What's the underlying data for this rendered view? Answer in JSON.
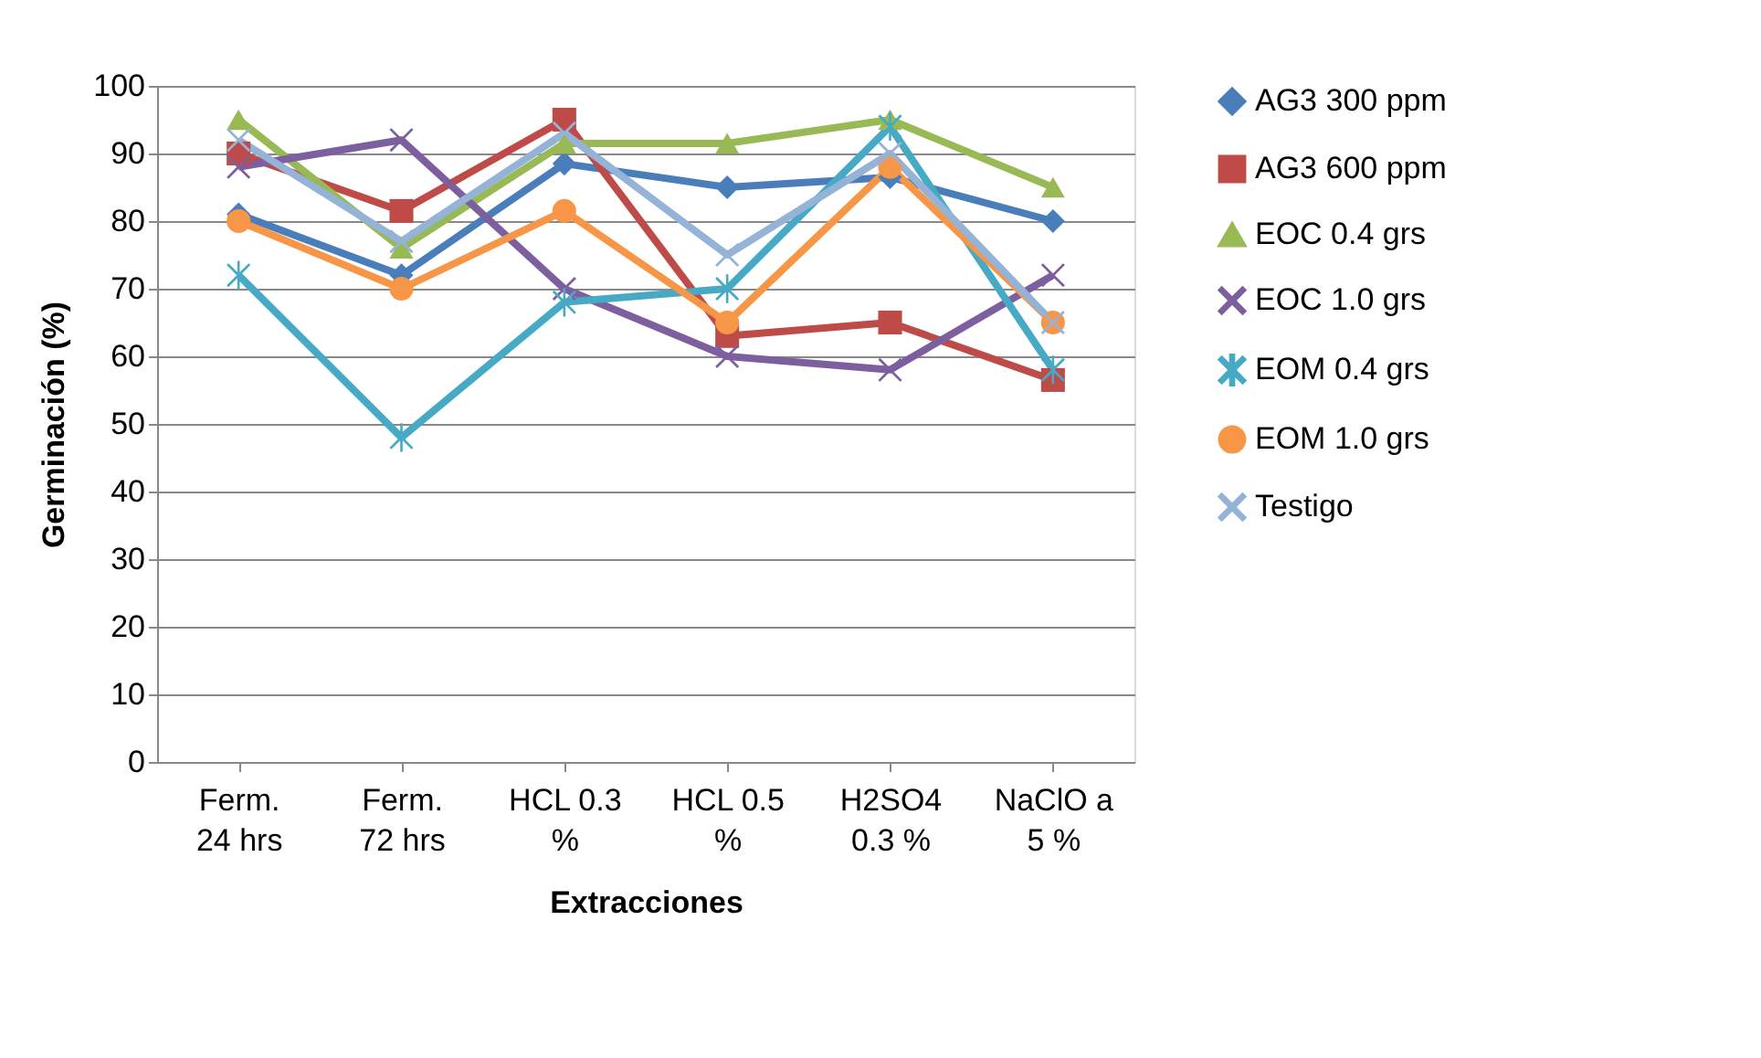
{
  "chart_data": {
    "type": "line",
    "xlabel": "Extracciones",
    "ylabel": "Germinación (%)",
    "categories": [
      "Ferm. 24 hrs",
      "Ferm. 72 hrs",
      "HCL 0.3 %",
      "HCL 0.5 %",
      "H2SO4 0.3 %",
      "NaClO a 5 %"
    ],
    "ylim": [
      0,
      100
    ],
    "yticks": [
      0,
      10,
      20,
      30,
      40,
      50,
      60,
      70,
      80,
      90,
      100
    ],
    "grid": "y",
    "legend": "right",
    "series": [
      {
        "name": "AG3   300 ppm",
        "color": "#4a7ebb",
        "marker": "diamond",
        "values": [
          81,
          72,
          88.5,
          85,
          86.5,
          80
        ]
      },
      {
        "name": "AG3   600 ppm",
        "color": "#be4b48",
        "marker": "square",
        "values": [
          90,
          81.5,
          95,
          63,
          65,
          56.5
        ]
      },
      {
        "name": "EOC 0.4 grs",
        "color": "#98b954",
        "marker": "triangle",
        "values": [
          95,
          76,
          91.5,
          91.5,
          95,
          85
        ]
      },
      {
        "name": "EOC 1.0 grs",
        "color": "#7d5fa0",
        "marker": "cross",
        "values": [
          88,
          92,
          70,
          60,
          58,
          72
        ]
      },
      {
        "name": "EOM 0.4 grs",
        "color": "#46aac5",
        "marker": "star",
        "values": [
          72,
          48,
          68,
          70,
          94,
          58
        ]
      },
      {
        "name": "EOM 1.0 grs",
        "color": "#f79646",
        "marker": "circle",
        "values": [
          80,
          70,
          81.5,
          65,
          88,
          65
        ]
      },
      {
        "name": "Testigo",
        "color": "#95b3d7",
        "marker": "cross",
        "values": [
          92,
          77,
          93,
          75,
          90,
          65
        ]
      }
    ]
  }
}
